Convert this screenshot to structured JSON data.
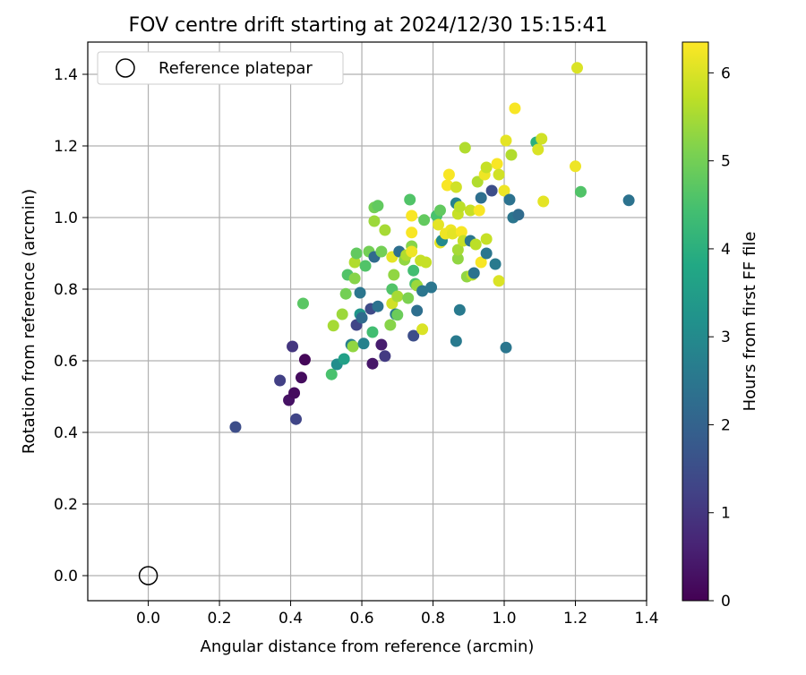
{
  "chart_data": {
    "type": "scatter",
    "title": "FOV centre drift starting at 2024/12/30 15:15:41",
    "xlabel": "Angular distance from reference (arcmin)",
    "ylabel": "Rotation from reference (arcmin)",
    "xlim": [
      -0.17,
      1.4
    ],
    "ylim": [
      -0.07,
      1.49
    ],
    "xticks": [
      "0.0",
      "0.2",
      "0.4",
      "0.6",
      "0.8",
      "1.0",
      "1.2",
      "1.4"
    ],
    "yticks": [
      "0.0",
      "0.2",
      "0.4",
      "0.6",
      "0.8",
      "1.0",
      "1.2",
      "1.4"
    ],
    "grid": true,
    "legend": {
      "placement": "top-left",
      "entries": [
        "Reference platepar"
      ]
    },
    "reference_point": {
      "x": 0.0,
      "y": 0.0,
      "label": "Reference platepar"
    },
    "colorbar": {
      "label": "Hours from first FF file",
      "min": 0,
      "max": 6.35,
      "ticks": [
        "0",
        "1",
        "2",
        "3",
        "4",
        "5",
        "6"
      ],
      "colormap": "viridis"
    },
    "points": [
      [
        0.245,
        0.415,
        1.5
      ],
      [
        0.37,
        0.545,
        1.2
      ],
      [
        0.395,
        0.49,
        0.3
      ],
      [
        0.41,
        0.51,
        0.2
      ],
      [
        0.405,
        0.64,
        1.0
      ],
      [
        0.415,
        0.437,
        1.3
      ],
      [
        0.43,
        0.553,
        0.2
      ],
      [
        0.44,
        0.603,
        0.1
      ],
      [
        0.435,
        0.76,
        4.7
      ],
      [
        0.515,
        0.562,
        4.5
      ],
      [
        0.52,
        0.698,
        5.5
      ],
      [
        0.53,
        0.59,
        3.1
      ],
      [
        0.545,
        0.73,
        5.4
      ],
      [
        0.55,
        0.605,
        3.6
      ],
      [
        0.555,
        0.787,
        5.0
      ],
      [
        0.56,
        0.84,
        4.6
      ],
      [
        0.57,
        0.645,
        2.7
      ],
      [
        0.575,
        0.64,
        5.3
      ],
      [
        0.58,
        0.83,
        5.2
      ],
      [
        0.585,
        0.7,
        1.3
      ],
      [
        0.58,
        0.875,
        5.6
      ],
      [
        0.585,
        0.9,
        4.8
      ],
      [
        0.595,
        0.79,
        2.5
      ],
      [
        0.595,
        0.73,
        3.3
      ],
      [
        0.6,
        0.72,
        2.2
      ],
      [
        0.605,
        0.648,
        2.8
      ],
      [
        0.61,
        0.865,
        4.6
      ],
      [
        0.62,
        0.905,
        5.0
      ],
      [
        0.625,
        0.745,
        1.4
      ],
      [
        0.63,
        0.68,
        4.4
      ],
      [
        0.63,
        0.592,
        0.4
      ],
      [
        0.635,
        0.89,
        2.2
      ],
      [
        0.635,
        0.99,
        5.4
      ],
      [
        0.635,
        1.028,
        5.0
      ],
      [
        0.645,
        1.033,
        4.8
      ],
      [
        0.645,
        0.752,
        2.4
      ],
      [
        0.655,
        0.645,
        0.5
      ],
      [
        0.655,
        0.905,
        5.0
      ],
      [
        0.665,
        0.965,
        5.5
      ],
      [
        0.665,
        0.613,
        1.1
      ],
      [
        0.68,
        0.7,
        5.2
      ],
      [
        0.685,
        0.8,
        4.6
      ],
      [
        0.685,
        0.89,
        6.1
      ],
      [
        0.685,
        0.76,
        5.9
      ],
      [
        0.69,
        0.84,
        5.3
      ],
      [
        0.695,
        0.73,
        2.6
      ],
      [
        0.7,
        0.78,
        5.5
      ],
      [
        0.7,
        0.728,
        4.9
      ],
      [
        0.705,
        0.905,
        2.3
      ],
      [
        0.72,
        0.882,
        5.3
      ],
      [
        0.725,
        0.895,
        5.6
      ],
      [
        0.73,
        0.775,
        5.1
      ],
      [
        0.735,
        1.05,
        4.6
      ],
      [
        0.74,
        0.92,
        5.2
      ],
      [
        0.74,
        0.905,
        6.2
      ],
      [
        0.74,
        0.958,
        6.3
      ],
      [
        0.74,
        1.005,
        6.3
      ],
      [
        0.745,
        0.67,
        1.5
      ],
      [
        0.745,
        0.852,
        4.4
      ],
      [
        0.75,
        0.815,
        4.5
      ],
      [
        0.755,
        0.74,
        2.3
      ],
      [
        0.755,
        0.81,
        5.4
      ],
      [
        0.765,
        0.88,
        5.8
      ],
      [
        0.77,
        0.795,
        2.5
      ],
      [
        0.77,
        0.688,
        6.0
      ],
      [
        0.775,
        0.993,
        4.8
      ],
      [
        0.78,
        0.875,
        5.8
      ],
      [
        0.795,
        0.805,
        2.5
      ],
      [
        0.81,
        1.005,
        4.5
      ],
      [
        0.815,
        0.98,
        6.1
      ],
      [
        0.82,
        1.02,
        4.8
      ],
      [
        0.82,
        0.93,
        6.1
      ],
      [
        0.825,
        0.936,
        3.0
      ],
      [
        0.835,
        0.955,
        6.2
      ],
      [
        0.84,
        1.09,
        6.3
      ],
      [
        0.845,
        1.12,
        6.3
      ],
      [
        0.85,
        0.965,
        6.2
      ],
      [
        0.855,
        0.955,
        6.1
      ],
      [
        0.865,
        0.655,
        2.6
      ],
      [
        0.865,
        1.085,
        5.9
      ],
      [
        0.865,
        1.04,
        2.8
      ],
      [
        0.87,
        0.885,
        5.3
      ],
      [
        0.87,
        0.91,
        5.5
      ],
      [
        0.87,
        1.01,
        5.8
      ],
      [
        0.875,
        1.03,
        5.7
      ],
      [
        0.875,
        0.742,
        2.6
      ],
      [
        0.88,
        0.96,
        6.3
      ],
      [
        0.885,
        0.935,
        5.8
      ],
      [
        0.89,
        1.195,
        5.6
      ],
      [
        0.895,
        0.835,
        5.3
      ],
      [
        0.905,
        0.935,
        2.5
      ],
      [
        0.905,
        1.02,
        5.8
      ],
      [
        0.91,
        0.84,
        5.7
      ],
      [
        0.915,
        0.845,
        2.4
      ],
      [
        0.92,
        0.925,
        5.7
      ],
      [
        0.925,
        1.1,
        5.6
      ],
      [
        0.93,
        1.02,
        6.3
      ],
      [
        0.935,
        1.055,
        2.3
      ],
      [
        0.935,
        0.875,
        6.3
      ],
      [
        0.945,
        1.12,
        6.2
      ],
      [
        0.95,
        0.94,
        5.8
      ],
      [
        0.95,
        1.14,
        5.8
      ],
      [
        0.95,
        0.9,
        2.5
      ],
      [
        0.965,
        1.075,
        1.5
      ],
      [
        0.975,
        0.87,
        2.6
      ],
      [
        0.98,
        1.15,
        6.3
      ],
      [
        0.985,
        0.823,
        6.0
      ],
      [
        0.985,
        1.12,
        5.9
      ],
      [
        1.0,
        1.075,
        6.2
      ],
      [
        1.005,
        0.637,
        2.5
      ],
      [
        1.005,
        1.215,
        6.1
      ],
      [
        1.015,
        1.05,
        2.4
      ],
      [
        1.02,
        1.175,
        5.6
      ],
      [
        1.025,
        1.0,
        2.5
      ],
      [
        1.03,
        1.305,
        6.3
      ],
      [
        1.04,
        1.008,
        2.2
      ],
      [
        1.09,
        1.21,
        4.0
      ],
      [
        1.095,
        1.19,
        6.0
      ],
      [
        1.105,
        1.22,
        5.9
      ],
      [
        1.11,
        1.045,
        6.1
      ],
      [
        1.2,
        1.143,
        6.2
      ],
      [
        1.205,
        1.418,
        6.0
      ],
      [
        1.215,
        1.072,
        4.6
      ],
      [
        1.35,
        1.048,
        2.4
      ]
    ]
  }
}
